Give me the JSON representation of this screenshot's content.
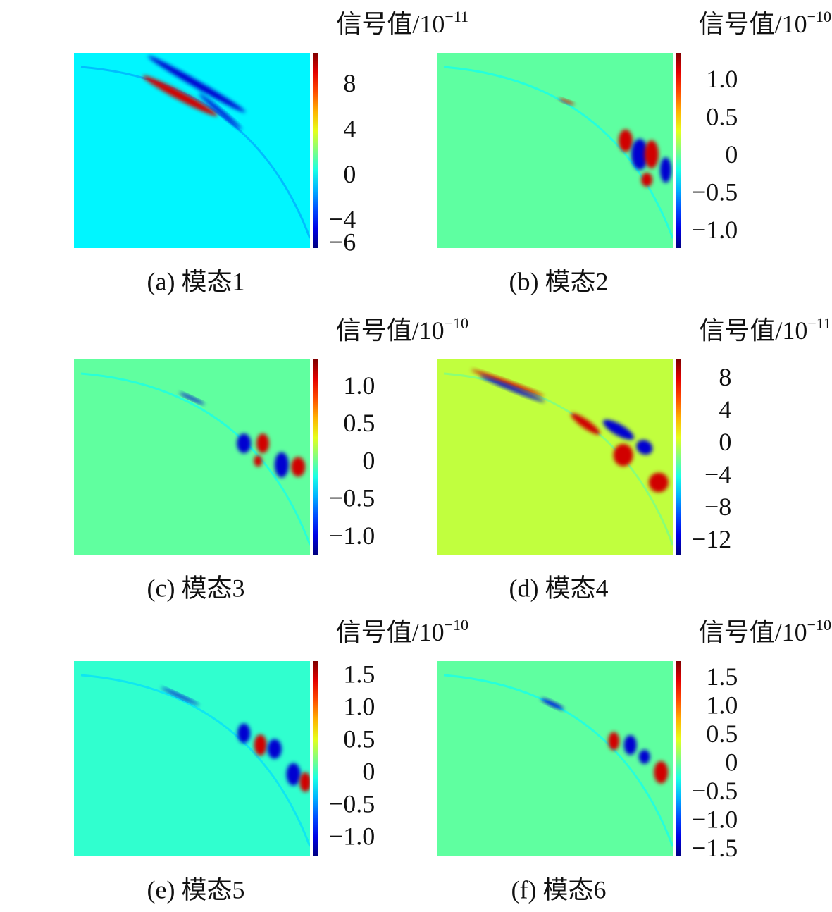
{
  "chart_data": [
    {
      "type": "heatmap",
      "colorbar_label": "信号值/10",
      "colorbar_exponent": "−11",
      "caption": "(a) 模态1",
      "clim": [
        -6.3,
        10.9
      ],
      "cticks": [
        8,
        4,
        0,
        {
          "value": -4,
          "label": "−4"
        },
        {
          "value": -6,
          "label": "−6"
        }
      ],
      "colormap": "jet"
    },
    {
      "type": "heatmap",
      "colorbar_label": "信号值/10",
      "colorbar_exponent": "−10",
      "caption": "(b) 模态2",
      "clim": [
        -1.21,
        1.38
      ],
      "cticks": [
        {
          "value": 1.0,
          "label": "1.0"
        },
        0.5,
        0,
        {
          "value": -0.5,
          "label": "−0.5"
        },
        {
          "value": -1.0,
          "label": "−1.0"
        }
      ],
      "colormap": "jet"
    },
    {
      "type": "heatmap",
      "colorbar_label": "信号值/10",
      "colorbar_exponent": "−10",
      "caption": "(c) 模态3",
      "clim": [
        -1.22,
        1.38
      ],
      "cticks": [
        {
          "value": 1.0,
          "label": "1.0"
        },
        0.5,
        0,
        {
          "value": -0.5,
          "label": "−0.5"
        },
        {
          "value": -1.0,
          "label": "−1.0"
        }
      ],
      "colormap": "jet"
    },
    {
      "type": "heatmap",
      "colorbar_label": "信号值/10",
      "colorbar_exponent": "−11",
      "caption": "(d) 模态4",
      "clim": [
        -13.6,
        10.5
      ],
      "cticks": [
        8,
        4,
        0,
        {
          "value": -4,
          "label": "−4"
        },
        {
          "value": -8,
          "label": "−8"
        },
        {
          "value": -12,
          "label": "−12"
        }
      ],
      "colormap": "jet"
    },
    {
      "type": "heatmap",
      "colorbar_label": "信号值/10",
      "colorbar_exponent": "−10",
      "caption": "(e) 模态5",
      "clim": [
        -1.27,
        1.74
      ],
      "cticks": [
        1.5,
        {
          "value": 1.0,
          "label": "1.0"
        },
        0.5,
        0,
        {
          "value": -0.5,
          "label": "−0.5"
        },
        {
          "value": -1.0,
          "label": "−1.0"
        }
      ],
      "colormap": "jet"
    },
    {
      "type": "heatmap",
      "colorbar_label": "信号值/10",
      "colorbar_exponent": "−10",
      "caption": "(f) 模态6",
      "clim": [
        -1.6,
        1.82
      ],
      "cticks": [
        1.5,
        {
          "value": 1.0,
          "label": "1.0"
        },
        0.5,
        0,
        {
          "value": -0.5,
          "label": "−0.5"
        },
        {
          "value": -1.0,
          "label": "−1.0"
        },
        {
          "value": -1.5,
          "label": "−1.5"
        }
      ],
      "colormap": "jet"
    }
  ]
}
